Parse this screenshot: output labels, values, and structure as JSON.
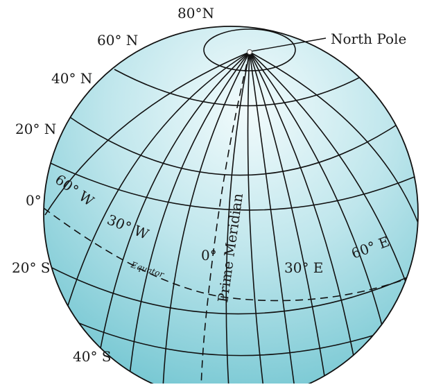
{
  "labels": {
    "north_pole": "North Pole",
    "lat_80n": "80°N",
    "lat_60n": "60° N",
    "lat_40n": "40° N",
    "lat_20n": "20° N",
    "lat_0": "0°",
    "lat_20s": "20° S",
    "lat_40s": "40° S",
    "lon_60w": "60° W",
    "lon_30w": "30° W",
    "lon_0": "0°",
    "lon_30e": "30° E",
    "lon_60e": "60° E",
    "equator": "Equator",
    "prime_meridian": "Prime Meridian"
  },
  "colors": {
    "globe_light": "#f2fbfc",
    "globe_mid": "#bfe6ec",
    "globe_dark": "#6cc3cf",
    "line": "#111111"
  }
}
